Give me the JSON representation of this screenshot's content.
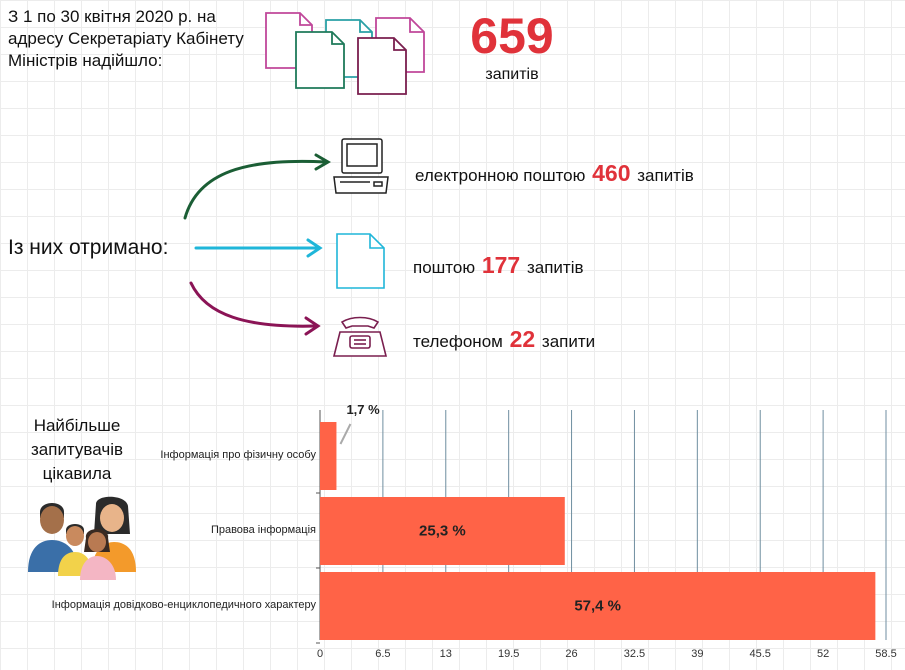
{
  "intro": {
    "text": "З 1 по 30 квітня 2020 р. на адресу Секретаріату Кабінету Міністрів надійшло:"
  },
  "total": {
    "number": "659",
    "unit": "запитів"
  },
  "received_label": "Із них отримано:",
  "channels": [
    {
      "prefix": "електронною поштою",
      "number": "460",
      "suffix": "запитів",
      "icon": "computer-icon",
      "arrow_color": "#1b5e35"
    },
    {
      "prefix": "поштою",
      "number": "177",
      "suffix": "запитів",
      "icon": "document-icon",
      "arrow_color": "#1fb6d9"
    },
    {
      "prefix": "телефоном",
      "number": "22",
      "suffix": "запити",
      "icon": "telephone-icon",
      "arrow_color": "#8b1456"
    }
  ],
  "interest_title": "Найбільше запитувачів цікавила",
  "colors": {
    "accent_red": "#e0323a",
    "bar": "#ff6347",
    "grid": "#6f8ea0",
    "doc_pink": "#c0479a",
    "doc_teal": "#2aa0a6",
    "doc_green": "#1f7a5a",
    "doc_plum": "#7a1f4f"
  },
  "chart_data": {
    "type": "bar",
    "orientation": "horizontal",
    "categories": [
      "Інформація про фізичну особу",
      "Правова інформація",
      "Інформація довідково-енциклопедичного характеру"
    ],
    "values": [
      1.7,
      25.3,
      57.4
    ],
    "value_labels": [
      "1,7 %",
      "25,3 %",
      "57,4 %"
    ],
    "ticks": [
      "0",
      "6.5",
      "13",
      "19.5",
      "26",
      "32.5",
      "39",
      "45.5",
      "52",
      "58.5"
    ],
    "xlim": [
      0,
      58.5
    ],
    "grid": true,
    "xlabel": "",
    "ylabel": ""
  }
}
